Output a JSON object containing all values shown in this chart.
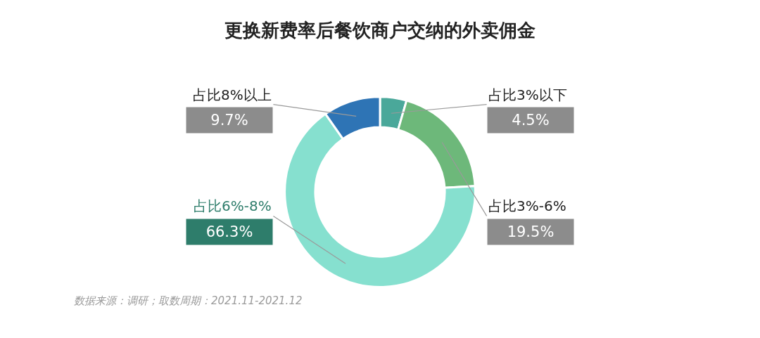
{
  "chart_data": {
    "type": "donut",
    "title": "更换新费率后餐饮商户交纳的外卖佣金",
    "categories": [
      "占比3%以下",
      "占比3%-6%",
      "占比6%-8%",
      "占比8%以上"
    ],
    "values": [
      4.5,
      19.5,
      66.3,
      9.7
    ],
    "value_labels": [
      "4.5%",
      "19.5%",
      "66.3%",
      "9.7%"
    ],
    "colors": [
      "#4aa89a",
      "#6db87a",
      "#86e0cf",
      "#2e74b5"
    ],
    "legend": false,
    "annotations": [
      "数据来源：调研；取数周期：2021.11-2021.12"
    ]
  }
}
